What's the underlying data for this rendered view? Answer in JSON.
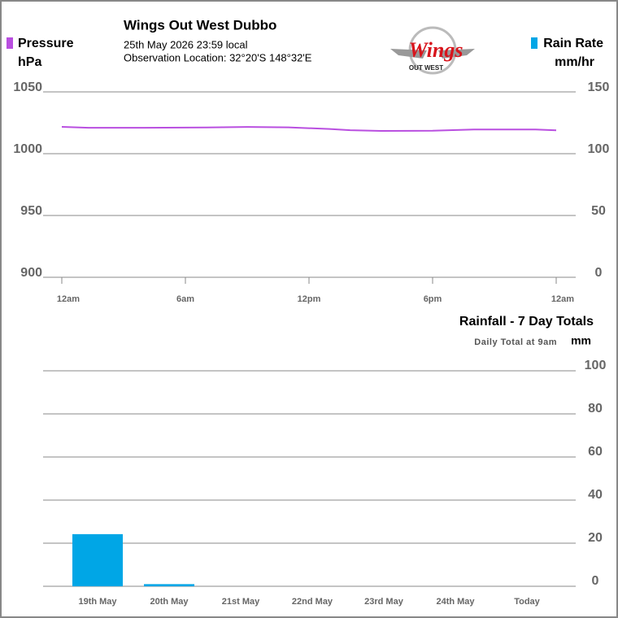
{
  "header": {
    "title": "Wings Out West Dubbo",
    "date": "25th May 2026  23:59 local",
    "location": "Observation Location: 32°20'S 148°32'E",
    "logo_text": "Wings",
    "logo_subtext": "OUT WEST"
  },
  "chart_data": [
    {
      "type": "line",
      "y_label": "Pressure",
      "y_unit": "hPa",
      "y2_label": "Rain Rate",
      "y2_unit": "mm/hr",
      "y2_color": "#00a6e6",
      "x": [
        0,
        1.3,
        4,
        7,
        9,
        11,
        13,
        14,
        15.5,
        18,
        20,
        23,
        24
      ],
      "series": [
        {
          "name": "Pressure",
          "color": "#b94fe0",
          "values": [
            1021.7,
            1021,
            1021,
            1021.2,
            1021.6,
            1021.3,
            1020,
            1019,
            1018.4,
            1018.6,
            1019.6,
            1019.6,
            1018.9
          ]
        }
      ],
      "xlim": [
        0,
        24
      ],
      "xticks": [
        {
          "value": 0,
          "label": "12am"
        },
        {
          "value": 6,
          "label": "6am"
        },
        {
          "value": 12,
          "label": "12pm"
        },
        {
          "value": 18,
          "label": "6pm"
        },
        {
          "value": 24,
          "label": "12am"
        }
      ],
      "ylim": [
        900,
        1050
      ],
      "yticks": [
        900,
        950,
        1000,
        1050
      ],
      "y2lim": [
        0,
        150
      ],
      "y2ticks": [
        0,
        50,
        100,
        150
      ],
      "grid": true
    },
    {
      "type": "bar",
      "title": "Rainfall - 7 Day Totals",
      "subtitle": "Daily Total at 9am",
      "y_unit": "mm",
      "categories": [
        "19th May",
        "20th May",
        "21st May",
        "22nd May",
        "23rd May",
        "24th May",
        "Today"
      ],
      "values": [
        24.2,
        1.0,
        0,
        0,
        0,
        0,
        0
      ],
      "color": "#00a6e6",
      "ylim": [
        0,
        100
      ],
      "yticks": [
        0,
        20,
        40,
        60,
        80,
        100
      ],
      "grid": true
    }
  ]
}
